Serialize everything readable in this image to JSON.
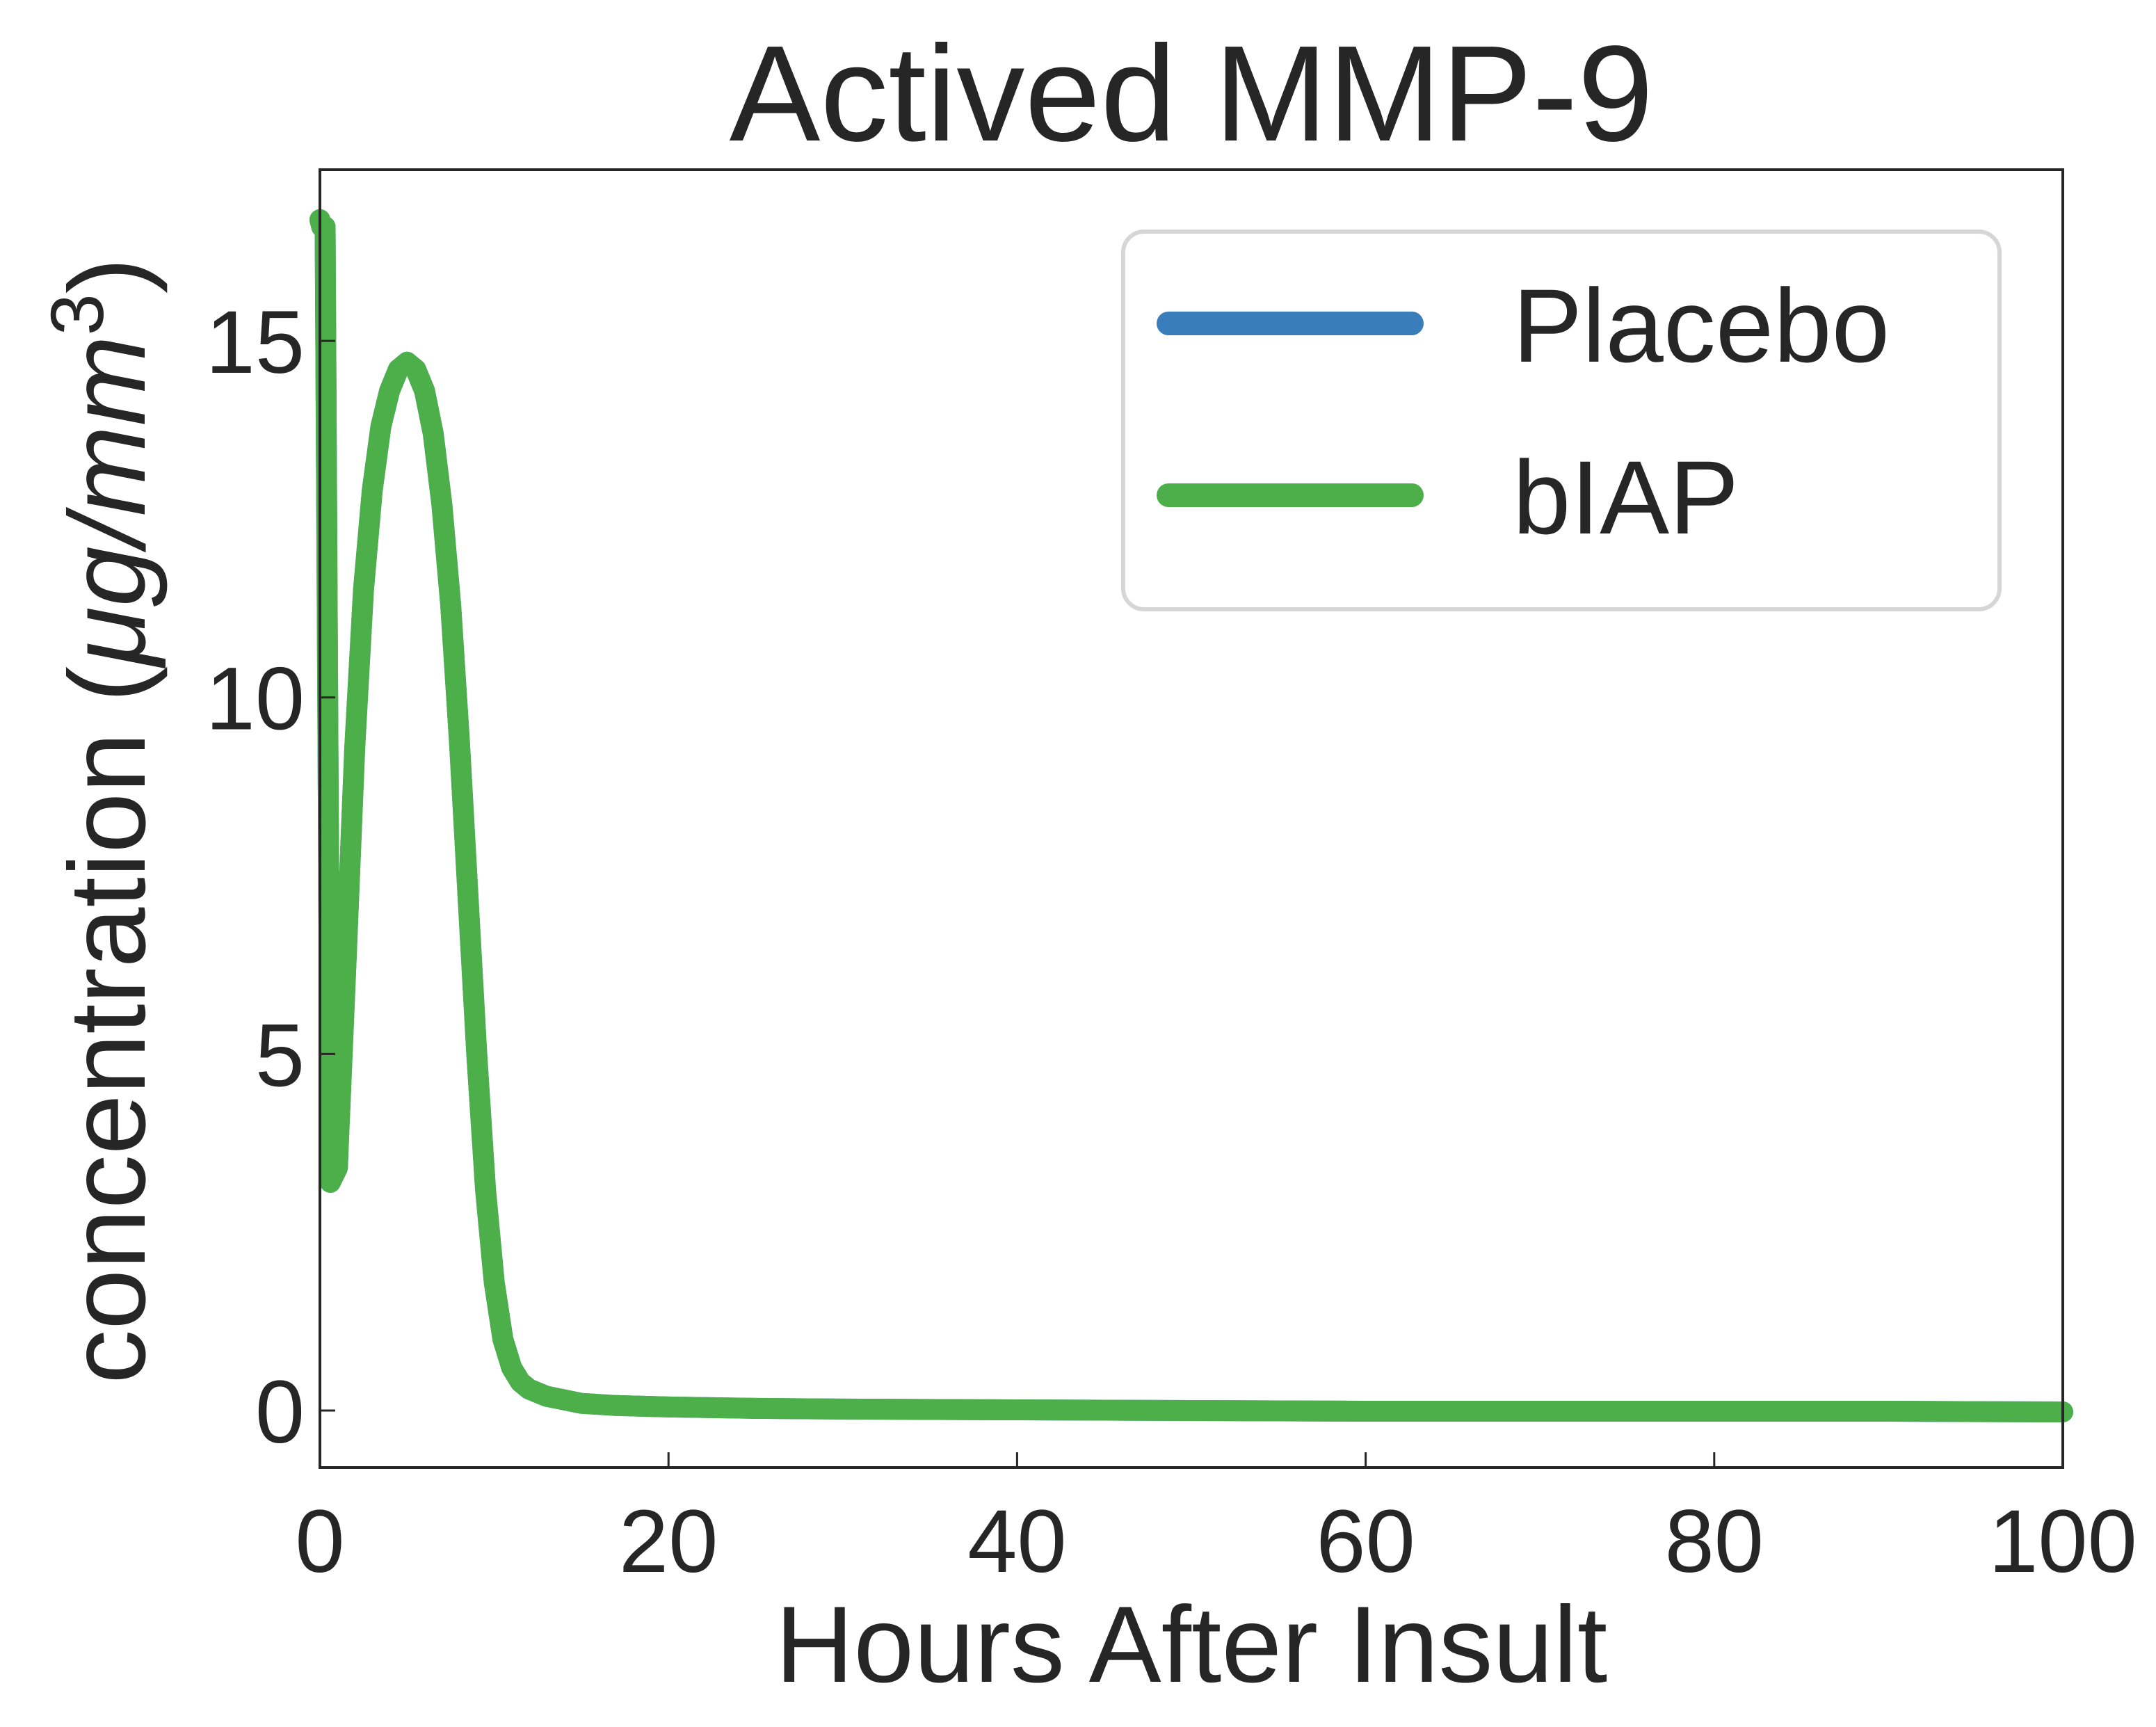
{
  "chart_data": {
    "type": "line",
    "title": "Actived MMP-9",
    "xlabel": "Hours After Insult",
    "ylabel": {
      "prefix": "concentration (",
      "unit_mu": "μ",
      "unit_g": "g/mm",
      "unit_exp": "3",
      "suffix": ")"
    },
    "xlim": [
      0,
      100
    ],
    "ylim": [
      -0.8,
      17.4
    ],
    "xticks": [
      0,
      20,
      40,
      60,
      80,
      100
    ],
    "xtick_labels": [
      "0",
      "20",
      "40",
      "60",
      "80",
      "100"
    ],
    "yticks": [
      0,
      5,
      10,
      15
    ],
    "ytick_labels": [
      "0",
      "5",
      "10",
      "15"
    ],
    "grid": false,
    "legend_position": "upper right",
    "series": [
      {
        "name": "Placebo",
        "color": "#3a7dbb",
        "x": [
          0,
          0.1,
          0.3,
          0.6,
          1,
          1.5,
          2,
          2.5,
          3,
          3.5,
          4,
          4.5,
          5,
          5.5,
          6,
          6.5,
          7,
          7.5,
          8,
          8.5,
          9,
          9.5,
          10,
          10.5,
          11,
          11.5,
          12,
          13,
          14,
          15,
          17,
          20,
          25,
          30,
          40,
          50,
          60,
          70,
          80,
          90,
          100
        ],
        "y": [
          16.7,
          16.6,
          16.6,
          3.2,
          3.4,
          6.3,
          9.3,
          11.5,
          12.9,
          13.8,
          14.3,
          14.6,
          14.7,
          14.6,
          14.3,
          13.7,
          12.7,
          11.3,
          9.4,
          7.2,
          5.0,
          3.1,
          1.8,
          1.0,
          0.6,
          0.4,
          0.3,
          0.2,
          0.15,
          0.1,
          0.07,
          0.05,
          0.03,
          0.02,
          0.01,
          0.0,
          -0.01,
          -0.01,
          -0.01,
          -0.01,
          -0.02
        ]
      },
      {
        "name": "bIAP",
        "color": "#4daf4a",
        "x": [
          0,
          0.1,
          0.3,
          0.6,
          1,
          1.5,
          2,
          2.5,
          3,
          3.5,
          4,
          4.5,
          5,
          5.5,
          6,
          6.5,
          7,
          7.5,
          8,
          8.5,
          9,
          9.5,
          10,
          10.5,
          11,
          11.5,
          12,
          13,
          14,
          15,
          17,
          20,
          25,
          30,
          40,
          50,
          60,
          70,
          80,
          90,
          100
        ],
        "y": [
          16.7,
          16.6,
          16.6,
          3.2,
          3.4,
          6.3,
          9.3,
          11.5,
          12.9,
          13.8,
          14.3,
          14.6,
          14.7,
          14.6,
          14.3,
          13.7,
          12.7,
          11.3,
          9.4,
          7.2,
          5.0,
          3.1,
          1.8,
          1.0,
          0.6,
          0.4,
          0.3,
          0.2,
          0.15,
          0.1,
          0.07,
          0.05,
          0.03,
          0.02,
          0.01,
          0.0,
          -0.01,
          -0.01,
          -0.01,
          -0.01,
          -0.02
        ]
      }
    ]
  }
}
